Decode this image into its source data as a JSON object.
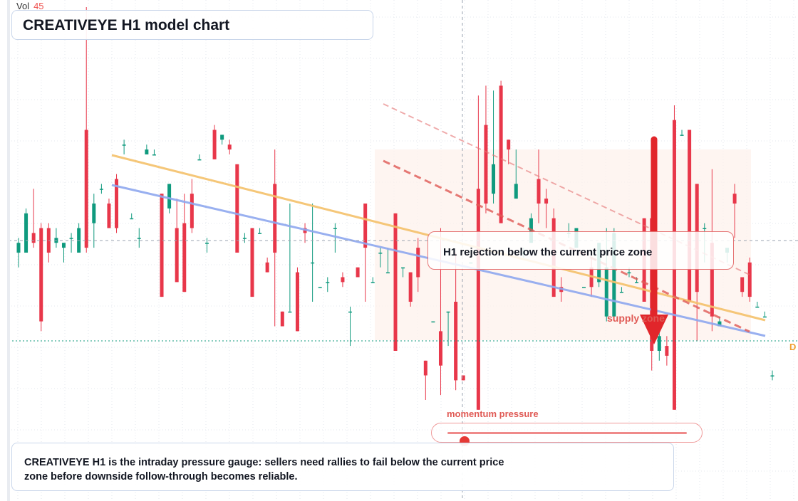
{
  "volume": {
    "label": "Vol",
    "value": "45"
  },
  "title": "CREATIVEYE H1 model chart",
  "callout_text": "H1 rejection below the current price zone",
  "zone_label": "supply zone",
  "gauge": {
    "label": "momentum pressure",
    "level": 0.07
  },
  "footer_text": "CREATIVEYE H1 is the intraday pressure gauge: sellers need rallies to fail below the current price zone before downside follow-through becomes reliable.",
  "edge_label": "D",
  "colors": {
    "bull": "#0f9a7e",
    "bear": "#e8374a",
    "yellow_trend": "#f5c16b",
    "blue_trend": "#8fa8ef",
    "channel": "#e57373",
    "arrow": "#e1262b",
    "zone_fill": "#fdf1ec"
  },
  "chart_data": {
    "type": "candlestick",
    "title": "CREATIVEYE H1 model chart",
    "y_scale": "price (unlabeled)",
    "ylim": [
      0,
      100
    ],
    "grid": true,
    "bars": [
      [
        50,
        53,
        47,
        52
      ],
      [
        50,
        59,
        57,
        58
      ],
      [
        54,
        63,
        51,
        52
      ],
      [
        55,
        56,
        34,
        36
      ],
      [
        55,
        56,
        48,
        50
      ],
      [
        52,
        55,
        51,
        53
      ],
      [
        51,
        52,
        48,
        52
      ],
      [
        53,
        54,
        50,
        53
      ],
      [
        50,
        56,
        50,
        55
      ],
      [
        75,
        100,
        50,
        51
      ],
      [
        56,
        62,
        51,
        60
      ],
      [
        63,
        64,
        62,
        63
      ],
      [
        60,
        61,
        55,
        55
      ],
      [
        65,
        66,
        54,
        55
      ],
      [
        72,
        73,
        70,
        72
      ],
      [
        57,
        58,
        59,
        57
      ],
      [
        53,
        55,
        51,
        53
      ],
      [
        70,
        72,
        70,
        71
      ],
      [
        70,
        71,
        70,
        70
      ],
      [
        62,
        62,
        41,
        41
      ],
      [
        59,
        64,
        58,
        64
      ],
      [
        55,
        61,
        44,
        44
      ],
      [
        56,
        62,
        42,
        42
      ],
      [
        62,
        65,
        54,
        55
      ],
      [
        69,
        70,
        70,
        69
      ],
      [
        52,
        53,
        50,
        52
      ],
      [
        75,
        76,
        69,
        69
      ],
      [
        73,
        74,
        72,
        74
      ],
      [
        72,
        73,
        70,
        71
      ],
      [
        68,
        68,
        50,
        50
      ],
      [
        53,
        54,
        52,
        53
      ],
      [
        55,
        54,
        41,
        41
      ],
      [
        54,
        55,
        55,
        54
      ],
      [
        48,
        49,
        46,
        46
      ],
      [
        64,
        71,
        35,
        50
      ],
      [
        38,
        38,
        35,
        35
      ],
      [
        38,
        60,
        52,
        38
      ],
      [
        46,
        47,
        34,
        34
      ],
      [
        55,
        56,
        52,
        54
      ],
      [
        48,
        60,
        40,
        48
      ],
      [
        43,
        43,
        43,
        43
      ],
      [
        44,
        45,
        42,
        44
      ],
      [
        55,
        56,
        50,
        55
      ],
      [
        45,
        46,
        43,
        44
      ],
      [
        38,
        39,
        31,
        38
      ],
      [
        47,
        47,
        45,
        45
      ],
      [
        60,
        51,
        40,
        51
      ],
      [
        44,
        45,
        46,
        44
      ],
      [
        50,
        51,
        47,
        50
      ],
      [
        46,
        51,
        52,
        46
      ],
      [
        58,
        58,
        30,
        30
      ],
      [
        47,
        47,
        45,
        47
      ],
      [
        46,
        46,
        39,
        40
      ],
      [
        51,
        53,
        42,
        45
      ],
      [
        28,
        26,
        20,
        25
      ],
      [
        36,
        36,
        36,
        36
      ],
      [
        34,
        55,
        21,
        27
      ],
      [
        38,
        37,
        31,
        38
      ],
      [
        40,
        50,
        22,
        24
      ],
      [
        25,
        25,
        25,
        24
      ],
      [
        48,
        48,
        48,
        48
      ],
      [
        63,
        82,
        18,
        18
      ],
      [
        76,
        84,
        58,
        60
      ],
      [
        62,
        83,
        60,
        68
      ],
      [
        84,
        85,
        56,
        56
      ],
      [
        73,
        73,
        68,
        71
      ],
      [
        61,
        71,
        62,
        64
      ],
      [
        50,
        51,
        49,
        50
      ],
      [
        52,
        58,
        52,
        57
      ],
      [
        65,
        71,
        56,
        60
      ],
      [
        61,
        63,
        55,
        60
      ],
      [
        57,
        59,
        42,
        41
      ],
      [
        43,
        45,
        40,
        42
      ],
      [
        54,
        56,
        53,
        54
      ],
      [
        51,
        53,
        56,
        55
      ],
      [
        43,
        43,
        43,
        43
      ],
      [
        47,
        49,
        41,
        43
      ],
      [
        44,
        52,
        43,
        52
      ],
      [
        37,
        55,
        36,
        47
      ],
      [
        37,
        55,
        38,
        54
      ],
      [
        42,
        43,
        42,
        42
      ],
      [
        46,
        47,
        45,
        46
      ],
      [
        44,
        45,
        44,
        44
      ],
      [
        57,
        57,
        40,
        40
      ],
      [
        57,
        71,
        26,
        30
      ],
      [
        30,
        34,
        28,
        33
      ],
      [
        31,
        33,
        27,
        29
      ],
      [
        77,
        80,
        18,
        18
      ],
      [
        74,
        75,
        74,
        74
      ],
      [
        75,
        59,
        40,
        40
      ],
      [
        64,
        61,
        32,
        42
      ],
      [
        55,
        56,
        48,
        55
      ],
      [
        52,
        67,
        34,
        37
      ],
      [
        35,
        37,
        40,
        36
      ],
      [
        50,
        50,
        48,
        51
      ],
      [
        62,
        64,
        53,
        60
      ],
      [
        45,
        45,
        41,
        42
      ],
      [
        48,
        49,
        40,
        41
      ],
      [
        39,
        40,
        39,
        39
      ],
      [
        37,
        38,
        37,
        37
      ],
      [
        25,
        26,
        24,
        25
      ]
    ]
  }
}
